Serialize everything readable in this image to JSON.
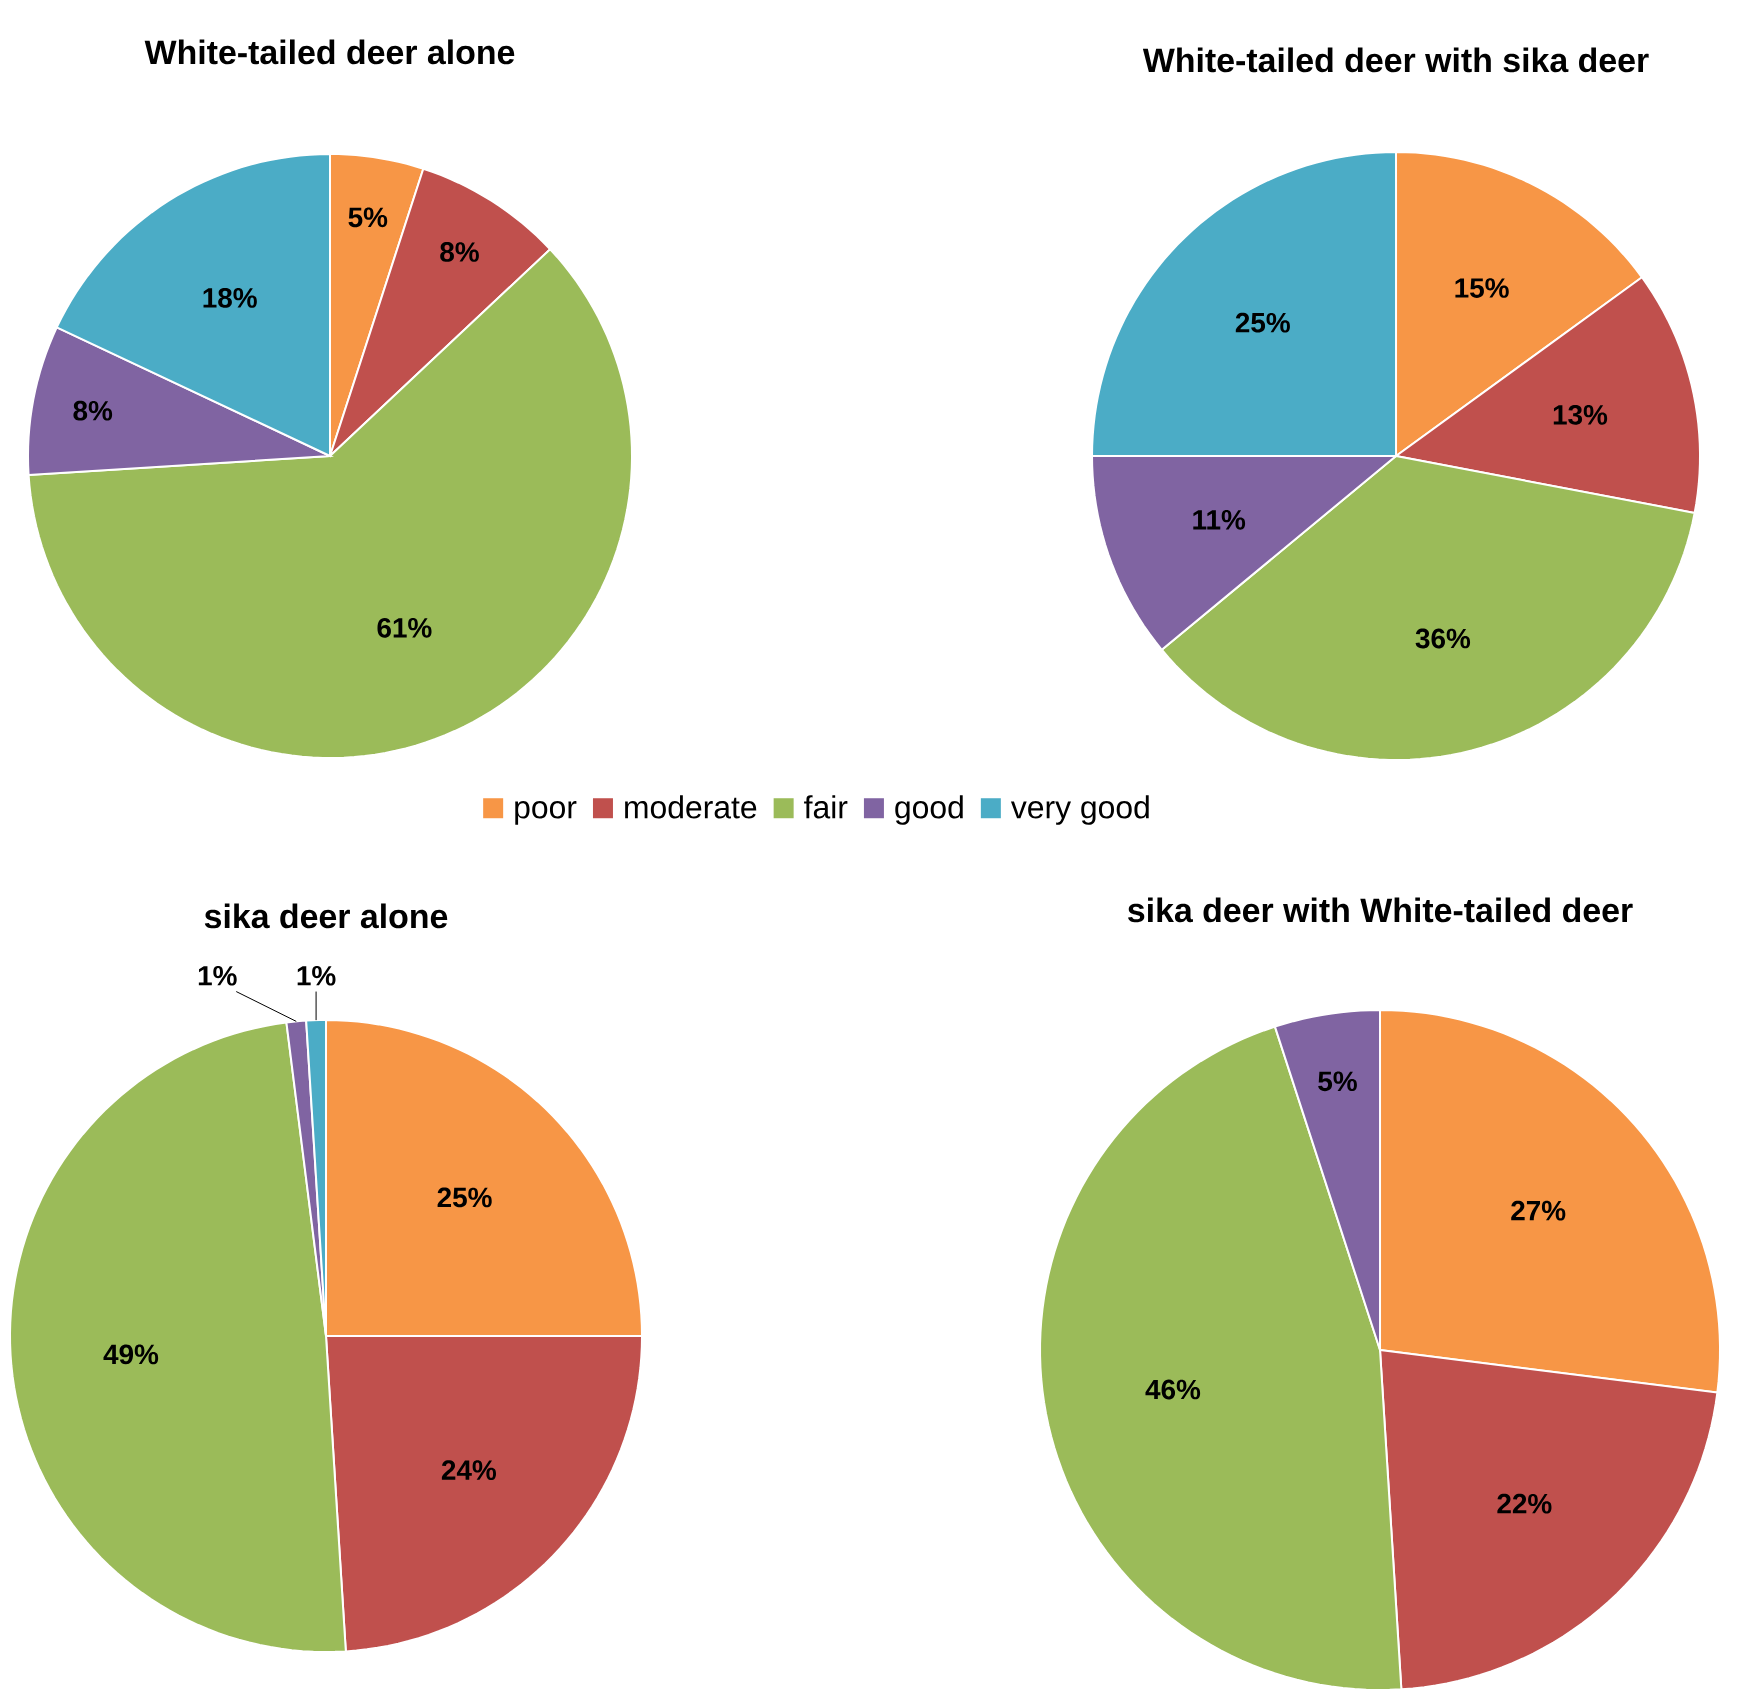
{
  "chart_data": [
    {
      "type": "pie",
      "title": "White-tailed deer alone",
      "categories": [
        "poor",
        "moderate",
        "fair",
        "good",
        "very good"
      ],
      "values": [
        5,
        8,
        61,
        8,
        18
      ],
      "value_labels": [
        "5%",
        "8%",
        "61%",
        "8%",
        "18%"
      ],
      "colors": [
        "#f79646",
        "#c0504d",
        "#9bbb59",
        "#8064a2",
        "#4bacc6"
      ],
      "legend": "bottom"
    },
    {
      "type": "pie",
      "title": "White-tailed deer with sika deer",
      "categories": [
        null,
        null,
        null,
        null,
        null
      ],
      "values": [
        15,
        13,
        36,
        11,
        25
      ],
      "value_labels": [
        "15%",
        "13%",
        "36%",
        "11%",
        "25%"
      ],
      "colors": [
        "#f79646",
        "#c0504d",
        "#9bbb59",
        "#8064a2",
        "#4bacc6"
      ]
    },
    {
      "type": "pie",
      "title": "sika deer alone",
      "categories": [
        null,
        null,
        null,
        null,
        null
      ],
      "values": [
        25,
        24,
        49,
        1,
        1
      ],
      "value_labels": [
        "25%",
        "24%",
        "49%",
        "1%",
        "1%"
      ],
      "colors": [
        "#f79646",
        "#c0504d",
        "#9bbb59",
        "#8064a2",
        "#4bacc6"
      ]
    },
    {
      "type": "pie",
      "title": "sika deer with White-tailed deer",
      "categories": [
        null,
        null,
        null,
        null
      ],
      "values": [
        27,
        22,
        46,
        5
      ],
      "value_labels": [
        "27%",
        "22%",
        "46%",
        "5%"
      ],
      "colors": [
        "#f79646",
        "#c0504d",
        "#9bbb59",
        "#8064a2"
      ]
    }
  ]
}
